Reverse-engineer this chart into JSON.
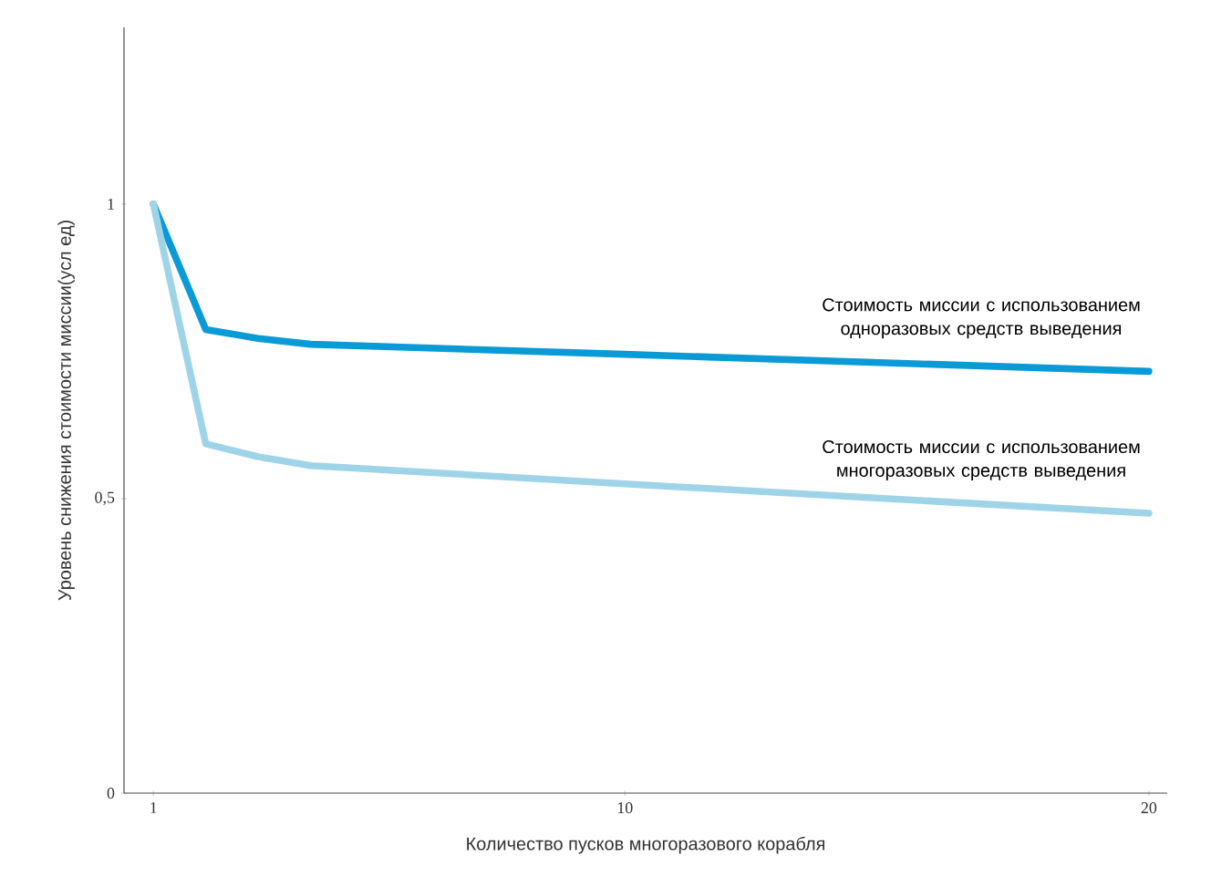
{
  "chart_data": {
    "type": "line",
    "xlabel": "Количество пусков многоразового корабля",
    "ylabel": "Уровень снижения стоимости миссии(усл ед)",
    "x": [
      1,
      2,
      3,
      4,
      10,
      20
    ],
    "series": [
      {
        "name": "Стоимость миссии с использованием одноразовых средств выведения",
        "color": "#0a9ad6",
        "values": [
          1,
          0.787,
          0.772,
          0.762,
          0.745,
          0.716
        ]
      },
      {
        "name": "Стоимость миссии с использованием многоразовых средств выведения",
        "color": "#9fd4e8",
        "values": [
          1,
          0.593,
          0.571,
          0.556,
          0.525,
          0.475
        ]
      }
    ],
    "xlim": [
      0.44,
      20.35
    ],
    "ylim": [
      0,
      1.3
    ],
    "xticks": [
      1,
      10,
      20
    ],
    "yticks": [
      0,
      {
        "value": 0.5,
        "label": "0,5"
      },
      1
    ],
    "grid": false,
    "marker": "none",
    "line_style": "solid"
  }
}
